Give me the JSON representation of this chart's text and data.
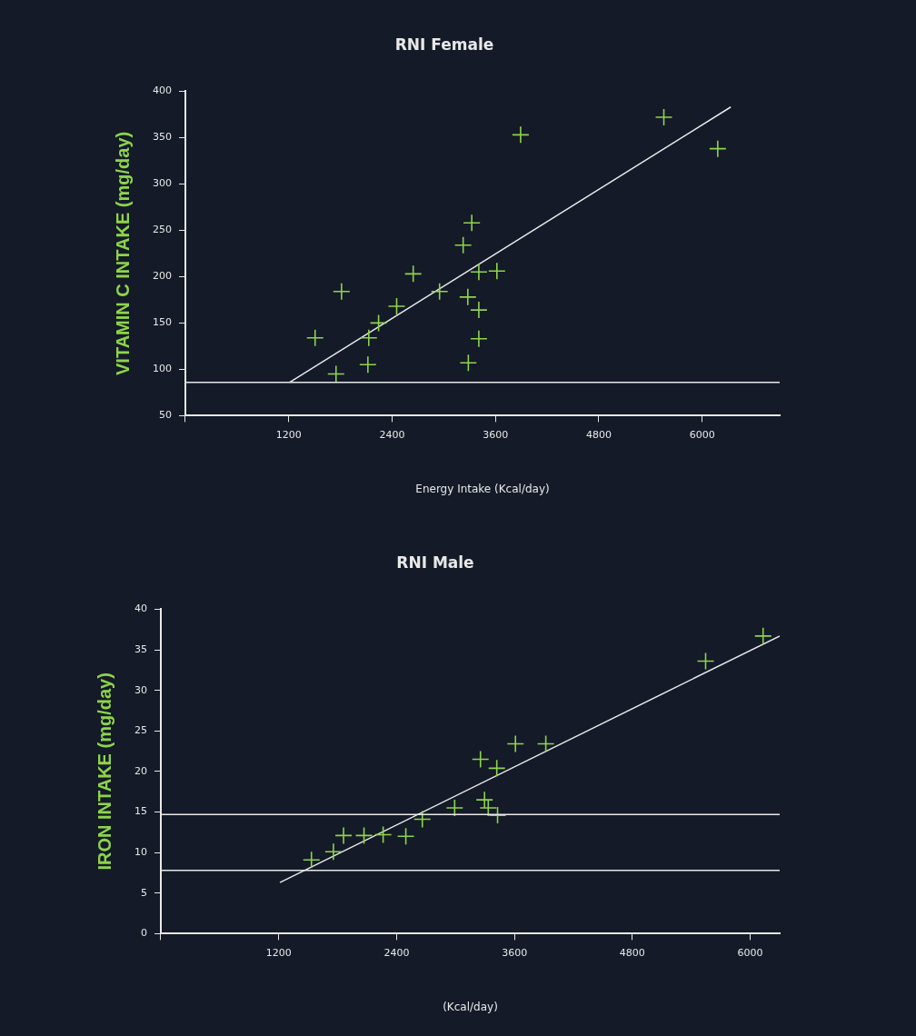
{
  "chart_data": [
    {
      "type": "scatter",
      "title": "RNI Female",
      "xlabel": "Energy Intake (Kcal/day)",
      "ylabel": "VITAMIN C INTAKE (mg/day)",
      "xlim": [
        0,
        6900
      ],
      "ylim": [
        50,
        400
      ],
      "xticks": [
        {
          "value": 0,
          "label": null
        },
        1200,
        2400,
        3600,
        4800,
        6000
      ],
      "yticks": [
        50,
        100,
        150,
        200,
        250,
        300,
        350,
        400
      ],
      "grid": false,
      "legend": false,
      "marker": "cross",
      "series": [
        {
          "type": "scatter",
          "color": "#8ed44a",
          "x": [
            1506,
            1813,
            1749,
            2129,
            2119,
            2243,
            2453,
            2645,
            2951,
            3225,
            3325,
            3279,
            3285,
            3407,
            3407,
            3407,
            3617,
            3892,
            5555,
            6181
          ],
          "values": [
            134,
            184,
            95,
            134,
            105,
            150,
            168,
            203,
            184,
            234,
            258,
            178,
            107,
            205,
            164,
            133,
            206,
            353,
            372,
            338
          ]
        },
        {
          "type": "line",
          "color": "#e8e8e8",
          "marker": "none",
          "x": [
            1212,
            6332
          ],
          "values": [
            86,
            383
          ]
        }
      ],
      "ref_lines": [
        {
          "axis": "y",
          "value": 86,
          "color": "#e8e8e8"
        }
      ]
    },
    {
      "type": "scatter",
      "title": "RNI Male",
      "xlabel": "(Kcal/day)",
      "ylabel": "IRON INTAKE (mg/day)",
      "xlim": [
        0,
        6300
      ],
      "ylim": [
        0,
        40
      ],
      "xticks": [
        {
          "value": 0,
          "label": null
        },
        1200,
        2400,
        3600,
        4800,
        6000
      ],
      "yticks": [
        0,
        5,
        10,
        15,
        20,
        25,
        30,
        35,
        40
      ],
      "grid": false,
      "legend": false,
      "marker": "cross",
      "series": [
        {
          "type": "scatter",
          "color": "#8ed44a",
          "x": [
            1533,
            1757,
            1860,
            2068,
            2263,
            2494,
            2662,
            2991,
            3254,
            3295,
            3333,
            3428,
            3420,
            3610,
            3919,
            5546,
            6131
          ],
          "values": [
            9.1,
            10.1,
            12.1,
            12.1,
            12.2,
            12.0,
            14.1,
            15.5,
            21.5,
            16.5,
            15.5,
            14.6,
            20.4,
            23.4,
            23.4,
            33.6,
            36.7
          ]
        },
        {
          "type": "line",
          "color": "#e8e8e8",
          "marker": "none",
          "x": [
            1212,
            6300
          ],
          "values": [
            6.3,
            36.7
          ]
        }
      ],
      "ref_lines": [
        {
          "axis": "y",
          "value": 14.7,
          "color": "#e8e8e8"
        },
        {
          "axis": "y",
          "value": 7.8,
          "color": "#e8e8e8"
        }
      ]
    }
  ]
}
